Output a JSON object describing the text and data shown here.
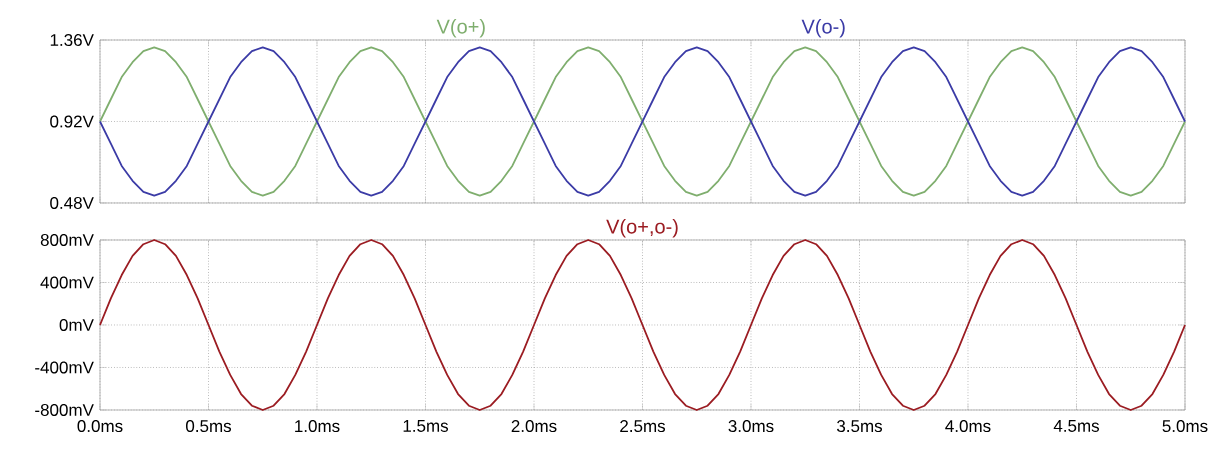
{
  "chart_data": [
    {
      "type": "line",
      "legend": "top",
      "grid": true,
      "tick_labels": "y",
      "xlim": [
        0,
        5
      ],
      "ylim": [
        0.48,
        1.36
      ],
      "xticks": [
        {
          "value": 0,
          "label": null
        },
        {
          "value": 0.5,
          "label": null
        },
        {
          "value": 1,
          "label": null
        },
        {
          "value": 1.5,
          "label": null
        },
        {
          "value": 2,
          "label": null
        },
        {
          "value": 2.5,
          "label": null
        },
        {
          "value": 3,
          "label": null
        },
        {
          "value": 3.5,
          "label": null
        },
        {
          "value": 4,
          "label": null
        },
        {
          "value": 4.5,
          "label": null
        },
        {
          "value": 5,
          "label": null
        }
      ],
      "yticks": [
        {
          "value": 0.48,
          "label": "0.48V"
        },
        {
          "value": 0.92,
          "label": "0.92V"
        },
        {
          "value": 1.36,
          "label": "1.36V"
        }
      ],
      "x": [
        0,
        0.05,
        0.1,
        0.15,
        0.2,
        0.25,
        0.3,
        0.35,
        0.4,
        0.45,
        0.5,
        0.55,
        0.6,
        0.65,
        0.7,
        0.75,
        0.8,
        0.85,
        0.9,
        0.95,
        1,
        1.05,
        1.1,
        1.15,
        1.2,
        1.25,
        1.3,
        1.35,
        1.4,
        1.45,
        1.5,
        1.55,
        1.6,
        1.65,
        1.7,
        1.75,
        1.8,
        1.85,
        1.9,
        1.95,
        2,
        2.05,
        2.1,
        2.15,
        2.2,
        2.25,
        2.3,
        2.35,
        2.4,
        2.45,
        2.5,
        2.55,
        2.6,
        2.65,
        2.7,
        2.75,
        2.8,
        2.85,
        2.9,
        2.95,
        3,
        3.05,
        3.1,
        3.15,
        3.2,
        3.25,
        3.3,
        3.35,
        3.4,
        3.45,
        3.5,
        3.55,
        3.6,
        3.65,
        3.7,
        3.75,
        3.8,
        3.85,
        3.9,
        3.95,
        4,
        4.05,
        4.1,
        4.15,
        4.2,
        4.25,
        4.3,
        4.35,
        4.4,
        4.45,
        4.5,
        4.55,
        4.6,
        4.65,
        4.7,
        4.75,
        4.8,
        4.85,
        4.9,
        4.95,
        5
      ],
      "series": [
        {
          "name": "V(o+)",
          "color": "#7fae6e",
          "values": [
            0.92,
            1.04,
            1.16,
            1.24,
            1.3,
            1.32,
            1.3,
            1.24,
            1.16,
            1.04,
            0.92,
            0.8,
            0.68,
            0.6,
            0.54,
            0.52,
            0.54,
            0.6,
            0.68,
            0.8,
            0.92,
            1.04,
            1.16,
            1.24,
            1.3,
            1.32,
            1.3,
            1.24,
            1.16,
            1.04,
            0.92,
            0.8,
            0.68,
            0.6,
            0.54,
            0.52,
            0.54,
            0.6,
            0.68,
            0.8,
            0.92,
            1.04,
            1.16,
            1.24,
            1.3,
            1.32,
            1.3,
            1.24,
            1.16,
            1.04,
            0.92,
            0.8,
            0.68,
            0.6,
            0.54,
            0.52,
            0.54,
            0.6,
            0.68,
            0.8,
            0.92,
            1.04,
            1.16,
            1.24,
            1.3,
            1.32,
            1.3,
            1.24,
            1.16,
            1.04,
            0.92,
            0.8,
            0.68,
            0.6,
            0.54,
            0.52,
            0.54,
            0.6,
            0.68,
            0.8,
            0.92,
            1.04,
            1.16,
            1.24,
            1.3,
            1.32,
            1.3,
            1.24,
            1.16,
            1.04,
            0.92,
            0.8,
            0.68,
            0.6,
            0.54,
            0.52,
            0.54,
            0.6,
            0.68,
            0.8,
            0.92
          ]
        },
        {
          "name": "V(o-)",
          "color": "#3b3ba6",
          "values": [
            0.92,
            0.8,
            0.68,
            0.6,
            0.54,
            0.52,
            0.54,
            0.6,
            0.68,
            0.8,
            0.92,
            1.04,
            1.16,
            1.24,
            1.3,
            1.32,
            1.3,
            1.24,
            1.16,
            1.04,
            0.92,
            0.8,
            0.68,
            0.6,
            0.54,
            0.52,
            0.54,
            0.6,
            0.68,
            0.8,
            0.92,
            1.04,
            1.16,
            1.24,
            1.3,
            1.32,
            1.3,
            1.24,
            1.16,
            1.04,
            0.92,
            0.8,
            0.68,
            0.6,
            0.54,
            0.52,
            0.54,
            0.6,
            0.68,
            0.8,
            0.92,
            1.04,
            1.16,
            1.24,
            1.3,
            1.32,
            1.3,
            1.24,
            1.16,
            1.04,
            0.92,
            0.8,
            0.68,
            0.6,
            0.54,
            0.52,
            0.54,
            0.6,
            0.68,
            0.8,
            0.92,
            1.04,
            1.16,
            1.24,
            1.3,
            1.32,
            1.3,
            1.24,
            1.16,
            1.04,
            0.92,
            0.8,
            0.68,
            0.6,
            0.54,
            0.52,
            0.54,
            0.6,
            0.68,
            0.8,
            0.92,
            1.04,
            1.16,
            1.24,
            1.3,
            1.32,
            1.3,
            1.24,
            1.16,
            1.04,
            0.92
          ]
        }
      ]
    },
    {
      "type": "line",
      "legend": "top",
      "grid": true,
      "xlim": [
        0,
        5
      ],
      "ylim": [
        -800,
        800
      ],
      "xticks": [
        {
          "value": 0,
          "label": "0.0ms"
        },
        {
          "value": 0.5,
          "label": "0.5ms"
        },
        {
          "value": 1,
          "label": "1.0ms"
        },
        {
          "value": 1.5,
          "label": "1.5ms"
        },
        {
          "value": 2,
          "label": "2.0ms"
        },
        {
          "value": 2.5,
          "label": "2.5ms"
        },
        {
          "value": 3,
          "label": "3.0ms"
        },
        {
          "value": 3.5,
          "label": "3.5ms"
        },
        {
          "value": 4,
          "label": "4.0ms"
        },
        {
          "value": 4.5,
          "label": "4.5ms"
        },
        {
          "value": 5,
          "label": "5.0ms"
        }
      ],
      "yticks": [
        {
          "value": -800,
          "label": "-800mV"
        },
        {
          "value": -400,
          "label": "-400mV"
        },
        {
          "value": 0,
          "label": "0mV"
        },
        {
          "value": 400,
          "label": "400mV"
        },
        {
          "value": 800,
          "label": "800mV"
        }
      ],
      "x": [
        0,
        0.05,
        0.1,
        0.15,
        0.2,
        0.25,
        0.3,
        0.35,
        0.4,
        0.45,
        0.5,
        0.55,
        0.6,
        0.65,
        0.7,
        0.75,
        0.8,
        0.85,
        0.9,
        0.95,
        1,
        1.05,
        1.1,
        1.15,
        1.2,
        1.25,
        1.3,
        1.35,
        1.4,
        1.45,
        1.5,
        1.55,
        1.6,
        1.65,
        1.7,
        1.75,
        1.8,
        1.85,
        1.9,
        1.95,
        2,
        2.05,
        2.1,
        2.15,
        2.2,
        2.25,
        2.3,
        2.35,
        2.4,
        2.45,
        2.5,
        2.55,
        2.6,
        2.65,
        2.7,
        2.75,
        2.8,
        2.85,
        2.9,
        2.95,
        3,
        3.05,
        3.1,
        3.15,
        3.2,
        3.25,
        3.3,
        3.35,
        3.4,
        3.45,
        3.5,
        3.55,
        3.6,
        3.65,
        3.7,
        3.75,
        3.8,
        3.85,
        3.9,
        3.95,
        4,
        4.05,
        4.1,
        4.15,
        4.2,
        4.25,
        4.3,
        4.35,
        4.4,
        4.45,
        4.5,
        4.55,
        4.6,
        4.65,
        4.7,
        4.75,
        4.8,
        4.85,
        4.9,
        4.95,
        5
      ],
      "series": [
        {
          "name": "V(o+,o-)",
          "color": "#9b1c22",
          "values": [
            0,
            250,
            470,
            650,
            760,
            800,
            760,
            650,
            470,
            250,
            0,
            -250,
            -470,
            -650,
            -760,
            -800,
            -760,
            -650,
            -470,
            -250,
            0,
            250,
            470,
            650,
            760,
            800,
            760,
            650,
            470,
            250,
            0,
            -250,
            -470,
            -650,
            -760,
            -800,
            -760,
            -650,
            -470,
            -250,
            0,
            250,
            470,
            650,
            760,
            800,
            760,
            650,
            470,
            250,
            0,
            -250,
            -470,
            -650,
            -760,
            -800,
            -760,
            -650,
            -470,
            -250,
            0,
            250,
            470,
            650,
            760,
            800,
            760,
            650,
            470,
            250,
            0,
            -250,
            -470,
            -650,
            -760,
            -800,
            -760,
            -650,
            -470,
            -250,
            0,
            250,
            470,
            650,
            760,
            800,
            760,
            650,
            470,
            250,
            0,
            -250,
            -470,
            -650,
            -760,
            -800,
            -760,
            -650,
            -470,
            -250,
            0
          ]
        }
      ]
    }
  ]
}
